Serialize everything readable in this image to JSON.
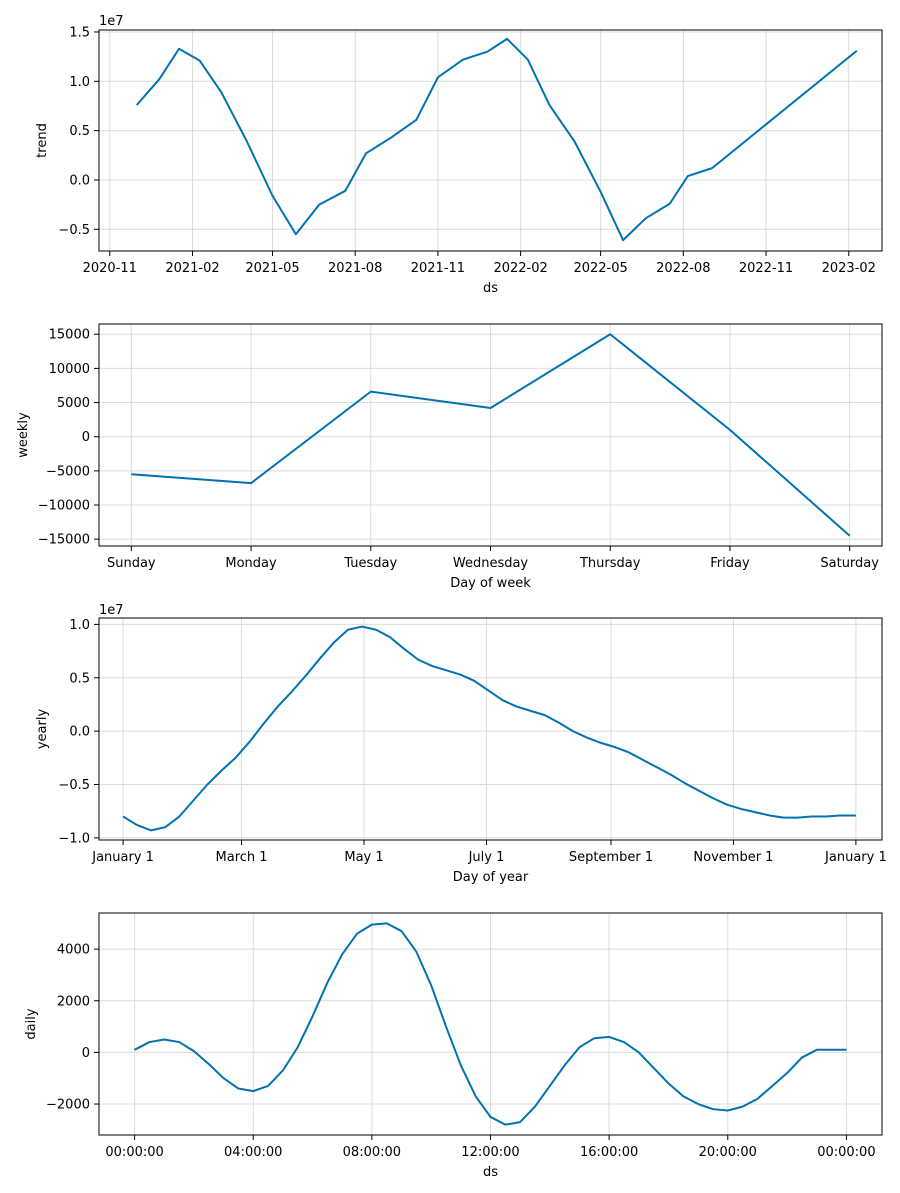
{
  "chart_data": [
    {
      "id": "trend",
      "type": "line",
      "xlabel": "ds",
      "ylabel": "trend",
      "offset_label": "1e7",
      "color": "#0072B2",
      "grid": true,
      "x_axis": "date",
      "xlim": [
        "2020-10-20",
        "2023-03-10"
      ],
      "ylim": [
        -0.72,
        1.52
      ],
      "x_ticks": [
        {
          "x": "2020-11-01",
          "label": "2020-11"
        },
        {
          "x": "2021-02-01",
          "label": "2021-02"
        },
        {
          "x": "2021-05-01",
          "label": "2021-05"
        },
        {
          "x": "2021-08-01",
          "label": "2021-08"
        },
        {
          "x": "2021-11-01",
          "label": "2021-11"
        },
        {
          "x": "2022-02-01",
          "label": "2022-02"
        },
        {
          "x": "2022-05-01",
          "label": "2022-05"
        },
        {
          "x": "2022-08-01",
          "label": "2022-08"
        },
        {
          "x": "2022-11-01",
          "label": "2022-11"
        },
        {
          "x": "2023-02-01",
          "label": "2023-02"
        }
      ],
      "y_ticks": [
        {
          "y": -0.5,
          "label": "−0.5"
        },
        {
          "y": 0.0,
          "label": "0.0"
        },
        {
          "y": 0.5,
          "label": "0.5"
        },
        {
          "y": 1.0,
          "label": "1.0"
        },
        {
          "y": 1.5,
          "label": "1.5"
        }
      ],
      "x": [
        "2020-12-01",
        "2020-12-26",
        "2021-01-17",
        "2021-02-09",
        "2021-03-05",
        "2021-04-02",
        "2021-05-01",
        "2021-05-27",
        "2021-06-22",
        "2021-07-21",
        "2021-08-13",
        "2021-09-10",
        "2021-10-08",
        "2021-11-01",
        "2021-11-29",
        "2021-12-26",
        "2022-01-17",
        "2022-02-09",
        "2022-03-05",
        "2022-04-02",
        "2022-05-01",
        "2022-05-26",
        "2022-06-20",
        "2022-07-17",
        "2022-08-06",
        "2022-09-02",
        "2023-02-10"
      ],
      "values": [
        0.76,
        1.02,
        1.33,
        1.21,
        0.89,
        0.4,
        -0.16,
        -0.55,
        -0.25,
        -0.11,
        0.27,
        0.43,
        0.61,
        1.04,
        1.22,
        1.3,
        1.43,
        1.22,
        0.76,
        0.39,
        -0.12,
        -0.61,
        -0.39,
        -0.24,
        0.04,
        0.12,
        1.31
      ]
    },
    {
      "id": "weekly",
      "type": "line",
      "xlabel": "Day of week",
      "ylabel": "weekly",
      "color": "#0072B2",
      "grid": true,
      "categories": [
        "Sunday",
        "Monday",
        "Tuesday",
        "Wednesday",
        "Thursday",
        "Friday",
        "Saturday"
      ],
      "xlim": [
        -0.27,
        6.27
      ],
      "ylim": [
        -16000,
        16500
      ],
      "y_ticks": [
        {
          "y": -15000,
          "label": "−15000"
        },
        {
          "y": -10000,
          "label": "−10000"
        },
        {
          "y": -5000,
          "label": "−5000"
        },
        {
          "y": 0,
          "label": "0"
        },
        {
          "y": 5000,
          "label": "5000"
        },
        {
          "y": 10000,
          "label": "10000"
        },
        {
          "y": 15000,
          "label": "15000"
        }
      ],
      "values": [
        -5500,
        -6800,
        6600,
        4200,
        15000,
        1000,
        -14500
      ]
    },
    {
      "id": "yearly",
      "type": "line",
      "xlabel": "Day of year",
      "ylabel": "yearly",
      "offset_label": "1e7",
      "color": "#0072B2",
      "grid": true,
      "xlim": [
        -12,
        378
      ],
      "ylim": [
        -1.02,
        1.06
      ],
      "x_ticks": [
        {
          "x": 0,
          "label": "January 1"
        },
        {
          "x": 59,
          "label": "March 1"
        },
        {
          "x": 120,
          "label": "May 1"
        },
        {
          "x": 181,
          "label": "July 1"
        },
        {
          "x": 243,
          "label": "September 1"
        },
        {
          "x": 304,
          "label": "November 1"
        },
        {
          "x": 365,
          "label": "January 1"
        }
      ],
      "y_ticks": [
        {
          "y": -1.0,
          "label": "−1.0"
        },
        {
          "y": -0.5,
          "label": "−0.5"
        },
        {
          "y": 0.0,
          "label": "0.0"
        },
        {
          "y": 0.5,
          "label": "0.5"
        },
        {
          "y": 1.0,
          "label": "1.0"
        }
      ],
      "x": [
        0,
        7,
        14,
        21,
        28,
        35,
        42,
        49,
        56,
        63,
        70,
        77,
        84,
        91,
        98,
        105,
        112,
        119,
        126,
        133,
        140,
        147,
        154,
        161,
        168,
        175,
        182,
        189,
        196,
        203,
        210,
        217,
        224,
        231,
        238,
        245,
        252,
        259,
        266,
        273,
        280,
        287,
        294,
        301,
        308,
        315,
        322,
        329,
        336,
        343,
        350,
        357,
        365
      ],
      "values": [
        -0.8,
        -0.88,
        -0.93,
        -0.9,
        -0.8,
        -0.65,
        -0.5,
        -0.37,
        -0.25,
        -0.1,
        0.07,
        0.23,
        0.37,
        0.52,
        0.68,
        0.83,
        0.95,
        0.98,
        0.95,
        0.88,
        0.77,
        0.67,
        0.61,
        0.57,
        0.53,
        0.47,
        0.38,
        0.29,
        0.23,
        0.19,
        0.15,
        0.08,
        0.0,
        -0.06,
        -0.11,
        -0.15,
        -0.2,
        -0.27,
        -0.34,
        -0.41,
        -0.49,
        -0.56,
        -0.63,
        -0.69,
        -0.73,
        -0.76,
        -0.79,
        -0.81,
        -0.81,
        -0.8,
        -0.8,
        -0.79,
        -0.79
      ]
    },
    {
      "id": "daily",
      "type": "line",
      "xlabel": "ds",
      "ylabel": "daily",
      "color": "#0072B2",
      "grid": true,
      "xlim": [
        -1.2,
        25.2
      ],
      "ylim": [
        -3200,
        5400
      ],
      "x_ticks": [
        {
          "x": 0,
          "label": "00:00:00"
        },
        {
          "x": 4,
          "label": "04:00:00"
        },
        {
          "x": 8,
          "label": "08:00:00"
        },
        {
          "x": 12,
          "label": "12:00:00"
        },
        {
          "x": 16,
          "label": "16:00:00"
        },
        {
          "x": 20,
          "label": "20:00:00"
        },
        {
          "x": 24,
          "label": "00:00:00"
        }
      ],
      "y_ticks": [
        {
          "y": -2000,
          "label": "−2000"
        },
        {
          "y": 0,
          "label": "0"
        },
        {
          "y": 2000,
          "label": "2000"
        },
        {
          "y": 4000,
          "label": "4000"
        }
      ],
      "x": [
        0,
        0.5,
        1,
        1.5,
        2,
        2.5,
        3,
        3.5,
        4,
        4.5,
        5,
        5.5,
        6,
        6.5,
        7,
        7.5,
        8,
        8.5,
        9,
        9.5,
        10,
        10.5,
        11,
        11.5,
        12,
        12.5,
        13,
        13.5,
        14,
        14.5,
        15,
        15.5,
        16,
        16.5,
        17,
        17.5,
        18,
        18.5,
        19,
        19.5,
        20,
        20.5,
        21,
        21.5,
        22,
        22.5,
        23,
        23.5,
        24
      ],
      "values": [
        100,
        400,
        500,
        400,
        50,
        -450,
        -1000,
        -1400,
        -1500,
        -1300,
        -700,
        200,
        1400,
        2700,
        3800,
        4600,
        4950,
        5000,
        4700,
        3900,
        2600,
        1000,
        -500,
        -1700,
        -2500,
        -2800,
        -2700,
        -2100,
        -1300,
        -500,
        200,
        550,
        600,
        400,
        0,
        -600,
        -1200,
        -1700,
        -2000,
        -2200,
        -2250,
        -2100,
        -1800,
        -1300,
        -800,
        -200,
        100,
        100,
        100
      ]
    }
  ]
}
